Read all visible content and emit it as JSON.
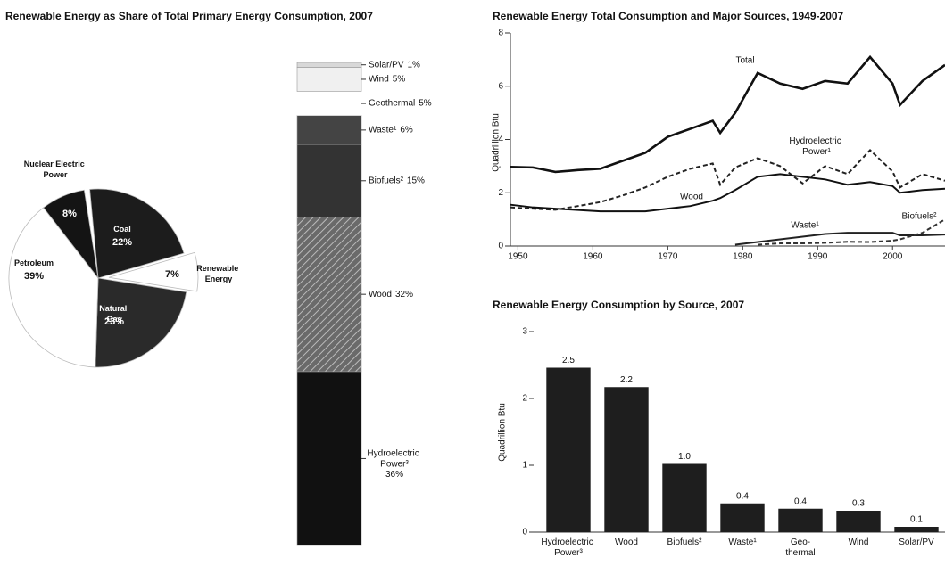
{
  "chart_data": [
    {
      "type": "pie",
      "title": "Renewable Energy as Share of Total Primary Energy Consumption, 2007",
      "categories": [
        "Coal",
        "Renewable Energy",
        "Natural Gas",
        "Petroleum",
        "Nuclear Electric Power"
      ],
      "values": [
        22,
        7,
        23,
        39,
        8
      ],
      "value_labels": [
        "22%",
        "7%",
        "23%",
        "39%",
        "8%"
      ],
      "colors": [
        "#1c1c1c",
        "#ffffff",
        "#2a2a2a",
        "#ffffff",
        "#141414"
      ]
    },
    {
      "type": "stacked_bar",
      "categories": [
        "Hydroelectric Power³",
        "Wood",
        "Biofuels²",
        "Waste¹",
        "Geothermal",
        "Wind",
        "Solar/PV"
      ],
      "values": [
        36,
        32,
        15,
        6,
        5,
        5,
        1
      ],
      "value_labels": [
        "36%",
        "32%",
        "15%",
        "6%",
        "5%",
        "5%",
        "1%"
      ],
      "colors": [
        "#111111",
        "#5a5a5a",
        "#333333",
        "#444444",
        "#ffffff",
        "#f0f0f0",
        "#d8d8d8"
      ]
    },
    {
      "type": "line",
      "title": "Renewable Energy Total Consumption and Major Sources, 1949-2007",
      "y_label": "Quadrillion Btu",
      "x": [
        1949,
        1952,
        1955,
        1958,
        1961,
        1964,
        1967,
        1970,
        1973,
        1976,
        1977,
        1979,
        1982,
        1985,
        1988,
        1991,
        1994,
        1997,
        2000,
        2001,
        2004,
        2007
      ],
      "xlim": [
        1949,
        2007
      ],
      "xticks": [
        1950,
        1960,
        1970,
        1980,
        1990,
        2000
      ],
      "ylim": [
        0,
        8
      ],
      "yticks": [
        0,
        2,
        4,
        6,
        8
      ],
      "series": [
        {
          "name": "Total",
          "color": "#111111",
          "dashed": false,
          "values": [
            2.97,
            2.95,
            2.78,
            2.85,
            2.9,
            3.2,
            3.5,
            4.1,
            4.4,
            4.7,
            4.25,
            5.0,
            6.5,
            6.1,
            5.9,
            6.2,
            6.1,
            7.1,
            6.1,
            5.3,
            6.2,
            6.8
          ]
        },
        {
          "name": "Hydroelectric Power¹",
          "color": "#222222",
          "dashed": true,
          "values": [
            1.45,
            1.4,
            1.36,
            1.5,
            1.65,
            1.9,
            2.2,
            2.6,
            2.9,
            3.1,
            2.3,
            2.95,
            3.3,
            3.0,
            2.35,
            3.0,
            2.7,
            3.6,
            2.8,
            2.2,
            2.7,
            2.45
          ]
        },
        {
          "name": "Wood",
          "color": "#111111",
          "dashed": false,
          "values": [
            1.55,
            1.45,
            1.4,
            1.35,
            1.3,
            1.3,
            1.3,
            1.4,
            1.5,
            1.7,
            1.8,
            2.1,
            2.6,
            2.7,
            2.6,
            2.5,
            2.3,
            2.4,
            2.25,
            2.0,
            2.1,
            2.15
          ]
        },
        {
          "name": "Waste¹",
          "color": "#222222",
          "dashed": false,
          "values": [
            null,
            null,
            null,
            null,
            null,
            null,
            null,
            null,
            null,
            null,
            null,
            0.05,
            0.15,
            0.25,
            0.35,
            0.45,
            0.5,
            0.5,
            0.5,
            0.4,
            0.4,
            0.43
          ]
        },
        {
          "name": "Biofuels²",
          "color": "#333333",
          "dashed": true,
          "values": [
            null,
            null,
            null,
            null,
            null,
            null,
            null,
            null,
            null,
            null,
            null,
            null,
            0.05,
            0.1,
            0.1,
            0.12,
            0.16,
            0.15,
            0.2,
            0.25,
            0.5,
            1.0
          ]
        }
      ]
    },
    {
      "type": "bar",
      "title": "Renewable Energy Consumption by Source, 2007",
      "y_label": "Quadrillion Btu",
      "categories": [
        "Hydroelectric Power³",
        "Wood",
        "Biofuels²",
        "Waste¹",
        "Geo-thermal",
        "Wind",
        "Solar/PV"
      ],
      "values": [
        2.46,
        2.17,
        1.02,
        0.43,
        0.35,
        0.32,
        0.08
      ],
      "value_labels": [
        "2.5",
        "2.2",
        "1.0",
        "0.4",
        "0.4",
        "0.3",
        "0.1"
      ],
      "color": "#1e1e1e",
      "ylim": [
        0,
        3
      ],
      "yticks": [
        0,
        1,
        2,
        3
      ]
    }
  ]
}
